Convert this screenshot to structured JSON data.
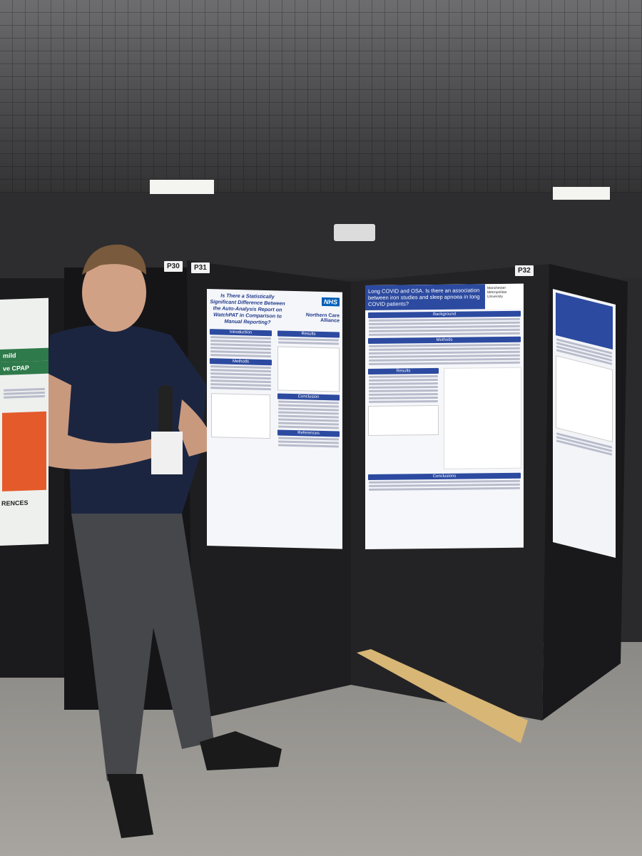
{
  "boards": [
    {
      "label": "P30"
    },
    {
      "label": "P31"
    },
    {
      "label": "P32"
    }
  ],
  "poster_left": {
    "lines": [
      "mild",
      "ve CPAP",
      "RENCES"
    ]
  },
  "poster_center": {
    "title": "Is There a Statistically Significant Difference Between the Auto-Analysis Report on WatchPAT in Comparison to Manual Reporting?",
    "logo": "NHS",
    "organisation": "Northern Care Alliance",
    "sections": [
      "Introduction",
      "Methods",
      "Results",
      "Conclusion",
      "References"
    ]
  },
  "poster_right": {
    "title": "Long COVID and OSA. Is there an association between iron studies and sleep apnoea in long COVID patients?",
    "organisation": "Manchester Metropolitan University",
    "sections": [
      "Background",
      "Methods",
      "Results",
      "Conclusions"
    ]
  }
}
